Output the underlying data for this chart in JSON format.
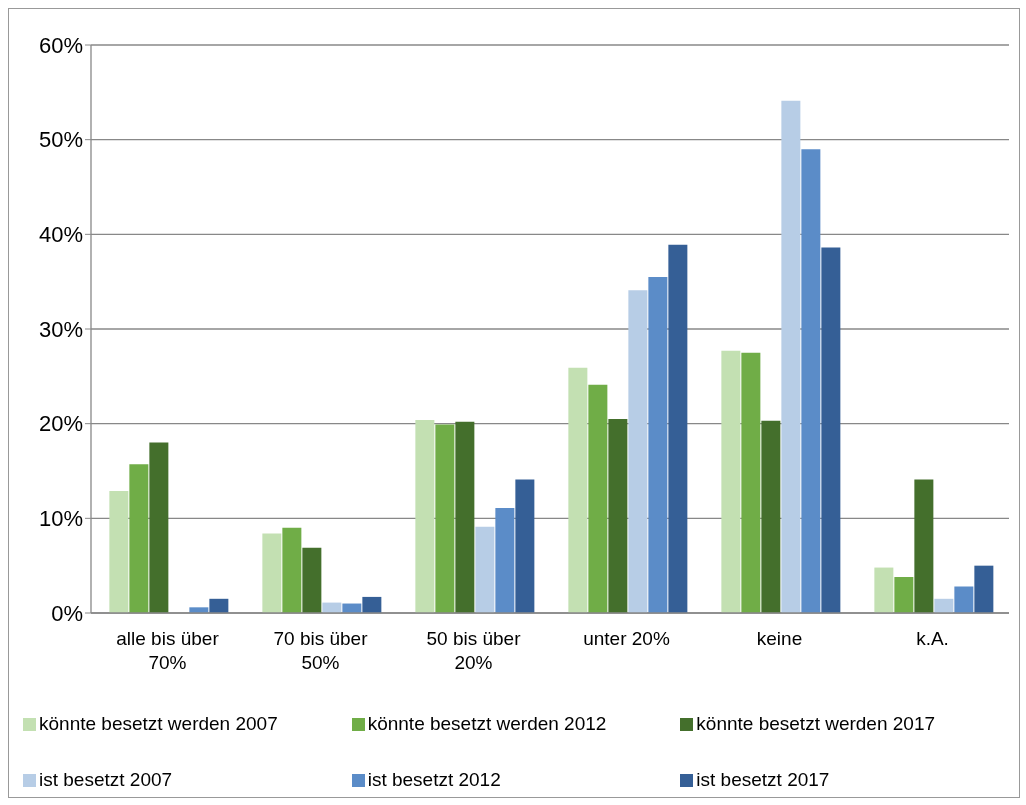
{
  "chart_data": {
    "type": "bar",
    "categories": [
      "alle bis über 70%",
      "70 bis über 50%",
      "50 bis über 20%",
      "unter 20%",
      "keine",
      "k.A."
    ],
    "series": [
      {
        "name": "könnte besetzt werden 2007",
        "color": "#c3e0b2",
        "values": [
          12.9,
          8.4,
          20.4,
          25.9,
          27.7,
          4.8
        ]
      },
      {
        "name": "könnte besetzt werden 2012",
        "color": "#70ad47",
        "values": [
          15.7,
          9.0,
          19.9,
          24.1,
          27.5,
          3.8
        ]
      },
      {
        "name": "könnte besetzt werden 2017",
        "color": "#446f2c",
        "values": [
          18.0,
          6.9,
          20.2,
          20.5,
          20.3,
          14.1
        ]
      },
      {
        "name": "ist besetzt 2007",
        "color": "#b7cde6",
        "values": [
          0,
          1.1,
          9.1,
          34.1,
          54.1,
          1.5
        ]
      },
      {
        "name": "ist besetzt 2012",
        "color": "#5b8cc8",
        "values": [
          0.6,
          1.0,
          11.1,
          35.5,
          49.0,
          2.8
        ]
      },
      {
        "name": "ist besetzt 2017",
        "color": "#355f96",
        "values": [
          1.5,
          1.7,
          14.1,
          38.9,
          38.6,
          5.0
        ]
      }
    ],
    "ylim": [
      0,
      60
    ],
    "yticks": [
      {
        "value": 0,
        "label": "0%"
      },
      {
        "value": 10,
        "label": "10%"
      },
      {
        "value": 20,
        "label": "20%"
      },
      {
        "value": 30,
        "label": "30%"
      },
      {
        "value": 40,
        "label": "40%"
      },
      {
        "value": 50,
        "label": "50%"
      },
      {
        "value": 60,
        "label": "60%"
      }
    ],
    "grid": "y",
    "legend": "bottom"
  }
}
